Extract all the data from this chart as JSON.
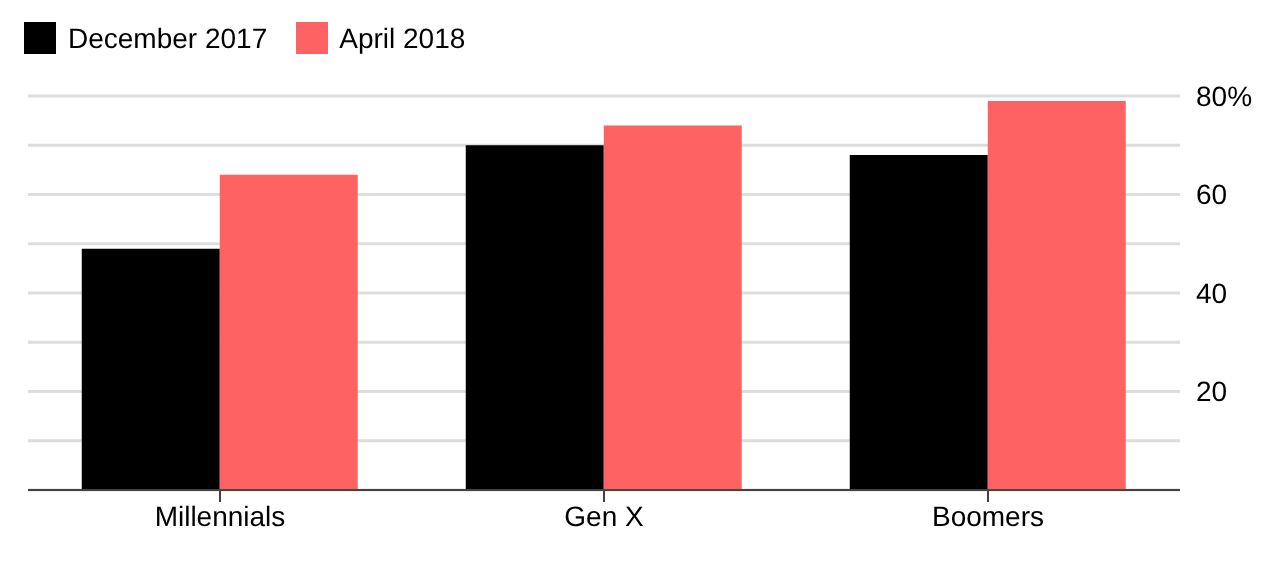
{
  "chart_data": {
    "type": "bar",
    "categories": [
      "Millennials",
      "Gen X",
      "Boomers"
    ],
    "series": [
      {
        "name": "December 2017",
        "color": "#000000",
        "values": [
          49,
          70,
          68
        ]
      },
      {
        "name": "April 2018",
        "color": "#ff6262",
        "values": [
          64,
          74,
          79
        ]
      }
    ],
    "ylim": [
      0,
      80
    ],
    "yticks": [
      {
        "value": 10,
        "label": null
      },
      20,
      {
        "value": 30,
        "label": null
      },
      40,
      {
        "value": 50,
        "label": null
      },
      60,
      {
        "value": 70,
        "label": null
      },
      {
        "value": 80,
        "label": "80%"
      }
    ],
    "grid": "y",
    "legend": "top left"
  }
}
